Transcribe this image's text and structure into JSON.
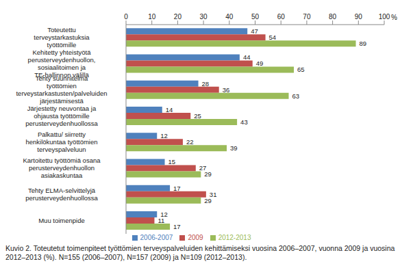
{
  "chart_data": {
    "type": "bar",
    "orientation": "horizontal",
    "title": "Kuvio 2. Toteutetut toimenpiteet työttömien terveyspalveluiden kehittämiseksi vuosina 2006–2007, vuonna 2009 ja vuosina 2012–2013 (%). N=155 (2006–2007), N=157 (2009) ja N=109 (2012–2013).",
    "xlabel": "%",
    "categories": [
      "Toteutettu terveystarkastuksia työttömille",
      "Kehitetty yhteistyötä perusterveydenhuollon, sosiaalitoimen ja TE-hallinnon välillä",
      "Tehty suunnitelma työttömien terveystarkastusten/palveluiden järjestämisestä",
      "Järjestetty neuvontaa ja ohjausta työttömille perusterveydenhuollossa",
      "Palkattu/ siirretty henkilökuntaa työttömien terveyspalveluun",
      "Kartoitettu työttömiä osana perusterveydenhuollon asiakaskuntaa",
      "Tehty ELMA-selvittelyjä perusterveydenhuollossa",
      "Muu toimenpide"
    ],
    "series": [
      {
        "name": "2006-2007",
        "color": "#4f81bd",
        "values": [
          47,
          44,
          28,
          14,
          12,
          15,
          17,
          12
        ]
      },
      {
        "name": "2009",
        "color": "#c0504d",
        "values": [
          54,
          49,
          36,
          25,
          22,
          27,
          31,
          11
        ]
      },
      {
        "name": "2012-2013",
        "color": "#9bbb59",
        "values": [
          89,
          65,
          63,
          43,
          39,
          29,
          29,
          17
        ]
      }
    ],
    "xlim": [
      0,
      100
    ],
    "xticks": [
      0,
      10,
      20,
      30,
      40,
      50,
      60,
      70,
      80,
      90,
      100
    ],
    "grid": false,
    "legend": "bottom",
    "data_labels": true
  }
}
